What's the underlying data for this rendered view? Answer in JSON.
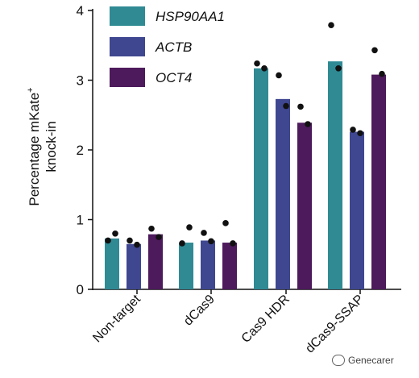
{
  "chart_data": {
    "type": "bar",
    "categories": [
      "Non-target",
      "dCas9",
      "Cas9 HDR",
      "dCas9-SSAP"
    ],
    "series": [
      {
        "name": "HSP90AA1",
        "color": "#2f8a94",
        "values": [
          0.73,
          0.67,
          3.17,
          3.27
        ],
        "replicates": [
          [
            0.7,
            0.8
          ],
          [
            0.66,
            0.89
          ],
          [
            3.24,
            3.17
          ],
          [
            3.79,
            3.17
          ]
        ]
      },
      {
        "name": "ACTB",
        "color": "#3f4790",
        "values": [
          0.65,
          0.7,
          2.73,
          2.26
        ],
        "replicates": [
          [
            0.7,
            0.64
          ],
          [
            0.81,
            0.69
          ],
          [
            3.07,
            2.63
          ],
          [
            2.29,
            2.24
          ]
        ]
      },
      {
        "name": "OCT4",
        "color": "#4d1a5c",
        "values": [
          0.79,
          0.67,
          2.39,
          3.08
        ],
        "replicates": [
          [
            0.87,
            0.75
          ],
          [
            0.95,
            0.66
          ],
          [
            2.62,
            2.37
          ],
          [
            3.43,
            3.09
          ]
        ]
      }
    ],
    "ylabel_line1": "Percentage mKate",
    "ylabel_superscript": "+",
    "ylabel_line2": "knock-in",
    "ylim": [
      0,
      4
    ],
    "yticks": [
      "0",
      "1",
      "2",
      "3",
      "4"
    ],
    "legend_position": "top-left"
  },
  "watermark": {
    "icon": "wechat-icon",
    "text": "Genecarer"
  }
}
